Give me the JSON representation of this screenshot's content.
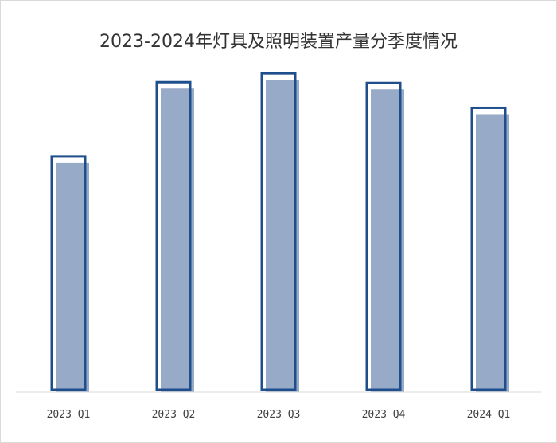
{
  "chart_data": {
    "type": "bar",
    "title": "2023-2024年灯具及照明装置产量分季度情况",
    "xlabel": "",
    "ylabel": "",
    "categories": [
      "2023 Q1",
      "2023 Q2",
      "2023 Q3",
      "2023 Q4",
      "2024 Q1"
    ],
    "series": [
      {
        "values": [
          294,
          387,
          398,
          386,
          355
        ]
      }
    ],
    "ylim": [
      0,
      420
    ],
    "grid": false,
    "legend": "none",
    "colors": {
      "fill": "#97abc9",
      "outline": "#1f4e8c"
    }
  }
}
